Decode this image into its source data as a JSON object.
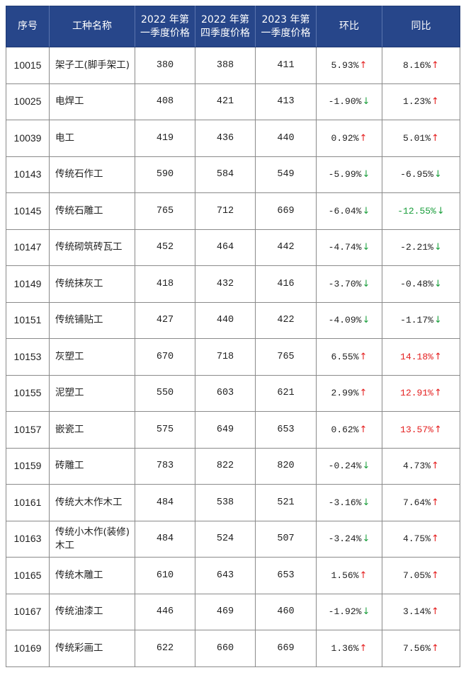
{
  "colors": {
    "header_bg": "#27468a",
    "header_text": "#ffffff",
    "up": "#e41e1e",
    "down": "#1a9e3c",
    "highlight_red": "#e41e1e",
    "highlight_green": "#1a9e3c"
  },
  "table": {
    "headers": [
      "序号",
      "工种名称",
      "2022 年第\n一季度价格",
      "2022 年第\n四季度价格",
      "2023 年第\n一季度价格",
      "环比",
      "同比"
    ],
    "rows": [
      {
        "id": "10015",
        "name": "架子工(脚手架工)",
        "q1_2022": "380",
        "q4_2022": "388",
        "q1_2023": "411",
        "hb": "5.93%",
        "hb_dir": "up",
        "tb": "8.16%",
        "tb_dir": "up",
        "tb_hl": ""
      },
      {
        "id": "10025",
        "name": "电焊工",
        "q1_2022": "408",
        "q4_2022": "421",
        "q1_2023": "413",
        "hb": "-1.90%",
        "hb_dir": "down",
        "tb": "1.23%",
        "tb_dir": "up",
        "tb_hl": ""
      },
      {
        "id": "10039",
        "name": "电工",
        "q1_2022": "419",
        "q4_2022": "436",
        "q1_2023": "440",
        "hb": "0.92%",
        "hb_dir": "up",
        "tb": "5.01%",
        "tb_dir": "up",
        "tb_hl": ""
      },
      {
        "id": "10143",
        "name": "传统石作工",
        "q1_2022": "590",
        "q4_2022": "584",
        "q1_2023": "549",
        "hb": "-5.99%",
        "hb_dir": "down",
        "tb": "-6.95%",
        "tb_dir": "down",
        "tb_hl": ""
      },
      {
        "id": "10145",
        "name": "传统石雕工",
        "q1_2022": "765",
        "q4_2022": "712",
        "q1_2023": "669",
        "hb": "-6.04%",
        "hb_dir": "down",
        "tb": "-12.55%",
        "tb_dir": "down",
        "tb_hl": "green"
      },
      {
        "id": "10147",
        "name": "传统砌筑砖瓦工",
        "q1_2022": "452",
        "q4_2022": "464",
        "q1_2023": "442",
        "hb": "-4.74%",
        "hb_dir": "down",
        "tb": "-2.21%",
        "tb_dir": "down",
        "tb_hl": ""
      },
      {
        "id": "10149",
        "name": "传统抹灰工",
        "q1_2022": "418",
        "q4_2022": "432",
        "q1_2023": "416",
        "hb": "-3.70%",
        "hb_dir": "down",
        "tb": "-0.48%",
        "tb_dir": "down",
        "tb_hl": ""
      },
      {
        "id": "10151",
        "name": "传统铺贴工",
        "q1_2022": "427",
        "q4_2022": "440",
        "q1_2023": "422",
        "hb": "-4.09%",
        "hb_dir": "down",
        "tb": "-1.17%",
        "tb_dir": "down",
        "tb_hl": ""
      },
      {
        "id": "10153",
        "name": "灰塑工",
        "q1_2022": "670",
        "q4_2022": "718",
        "q1_2023": "765",
        "hb": "6.55%",
        "hb_dir": "up",
        "tb": "14.18%",
        "tb_dir": "up",
        "tb_hl": "red"
      },
      {
        "id": "10155",
        "name": "泥塑工",
        "q1_2022": "550",
        "q4_2022": "603",
        "q1_2023": "621",
        "hb": "2.99%",
        "hb_dir": "up",
        "tb": "12.91%",
        "tb_dir": "up",
        "tb_hl": "red"
      },
      {
        "id": "10157",
        "name": "嵌瓷工",
        "q1_2022": "575",
        "q4_2022": "649",
        "q1_2023": "653",
        "hb": "0.62%",
        "hb_dir": "up",
        "tb": "13.57%",
        "tb_dir": "up",
        "tb_hl": "red"
      },
      {
        "id": "10159",
        "name": "砖雕工",
        "q1_2022": "783",
        "q4_2022": "822",
        "q1_2023": "820",
        "hb": "-0.24%",
        "hb_dir": "down",
        "tb": "4.73%",
        "tb_dir": "up",
        "tb_hl": ""
      },
      {
        "id": "10161",
        "name": "传统大木作木工",
        "q1_2022": "484",
        "q4_2022": "538",
        "q1_2023": "521",
        "hb": "-3.16%",
        "hb_dir": "down",
        "tb": "7.64%",
        "tb_dir": "up",
        "tb_hl": ""
      },
      {
        "id": "10163",
        "name": "传统小木作(装修)木工",
        "q1_2022": "484",
        "q4_2022": "524",
        "q1_2023": "507",
        "hb": "-3.24%",
        "hb_dir": "down",
        "tb": "4.75%",
        "tb_dir": "up",
        "tb_hl": ""
      },
      {
        "id": "10165",
        "name": "传统木雕工",
        "q1_2022": "610",
        "q4_2022": "643",
        "q1_2023": "653",
        "hb": "1.56%",
        "hb_dir": "up",
        "tb": "7.05%",
        "tb_dir": "up",
        "tb_hl": ""
      },
      {
        "id": "10167",
        "name": "传统油漆工",
        "q1_2022": "446",
        "q4_2022": "469",
        "q1_2023": "460",
        "hb": "-1.92%",
        "hb_dir": "down",
        "tb": "3.14%",
        "tb_dir": "up",
        "tb_hl": ""
      },
      {
        "id": "10169",
        "name": "传统彩画工",
        "q1_2022": "622",
        "q4_2022": "660",
        "q1_2023": "669",
        "hb": "1.36%",
        "hb_dir": "up",
        "tb": "7.56%",
        "tb_dir": "up",
        "tb_hl": ""
      }
    ],
    "arrow_icons": {
      "up": "↑",
      "down": "↓"
    }
  }
}
